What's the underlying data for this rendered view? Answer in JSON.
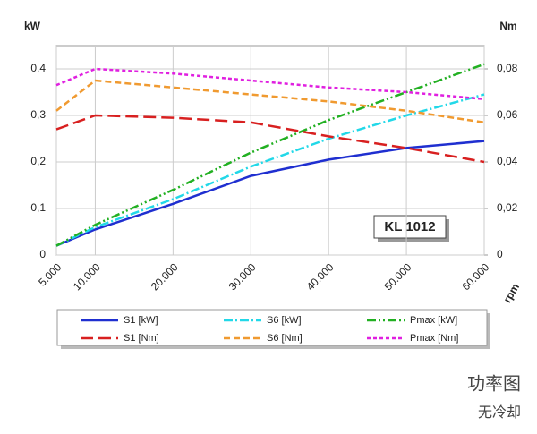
{
  "chart_data": {
    "type": "line",
    "y_label": "kW",
    "y2_label": "Nm",
    "x_label": "rpm",
    "annotation": "KL 1012",
    "caption": "功率图",
    "subcaption": "无冷却",
    "x": [
      5000,
      10000,
      20000,
      30000,
      40000,
      50000,
      60000
    ],
    "xlim": [
      5000,
      60000
    ],
    "xticks": [
      {
        "value": 5000,
        "label": "5.000"
      },
      {
        "value": 10000,
        "label": "10.000"
      },
      {
        "value": 20000,
        "label": "20.000"
      },
      {
        "value": 30000,
        "label": "30.000"
      },
      {
        "value": 40000,
        "label": "40.000"
      },
      {
        "value": 50000,
        "label": "50.000"
      },
      {
        "value": 60000,
        "label": "60.000"
      }
    ],
    "ylim": [
      0,
      0.45
    ],
    "yticks": [
      0,
      {
        "value": 0.1,
        "label": "0,1"
      },
      {
        "value": 0.2,
        "label": "0,2"
      },
      {
        "value": 0.3,
        "label": "0,3"
      },
      {
        "value": 0.4,
        "label": "0,4"
      }
    ],
    "y2lim": [
      0,
      0.09
    ],
    "y2ticks": [
      0,
      {
        "value": 0.02,
        "label": "0,02"
      },
      {
        "value": 0.04,
        "label": "0,04"
      },
      {
        "value": 0.06,
        "label": "0,06"
      },
      {
        "value": 0.08,
        "label": "0,08"
      }
    ],
    "grid": true,
    "series": [
      {
        "name": "S1 [kW]",
        "color": "#1f2fd0",
        "dash": "none",
        "values": [
          0.02,
          0.055,
          0.11,
          0.17,
          0.205,
          0.23,
          0.245
        ]
      },
      {
        "name": "S6 [kW]",
        "color": "#22d8e8",
        "dash": "10,3,2,3",
        "values": [
          0.02,
          0.06,
          0.12,
          0.19,
          0.25,
          0.3,
          0.345
        ]
      },
      {
        "name": "Pmax [kW]",
        "color": "#22b022",
        "dash": "10,3,2,3,2,3",
        "values": [
          0.02,
          0.065,
          0.14,
          0.22,
          0.29,
          0.35,
          0.41
        ]
      },
      {
        "name": "S1 [Nm]",
        "color": "#d82020",
        "dash": "14,6",
        "axis": "y2",
        "values": [
          0.054,
          0.06,
          0.059,
          0.057,
          0.051,
          0.046,
          0.04
        ]
      },
      {
        "name": "S6 [Nm]",
        "color": "#f09a30",
        "dash": "7,4",
        "axis": "y2",
        "values": [
          0.062,
          0.075,
          0.072,
          0.069,
          0.066,
          0.062,
          0.057
        ]
      },
      {
        "name": "Pmax [Nm]",
        "color": "#e020e0",
        "dash": "4,3",
        "axis": "y2",
        "values": [
          0.073,
          0.08,
          0.078,
          0.075,
          0.072,
          0.07,
          0.067
        ]
      }
    ]
  }
}
